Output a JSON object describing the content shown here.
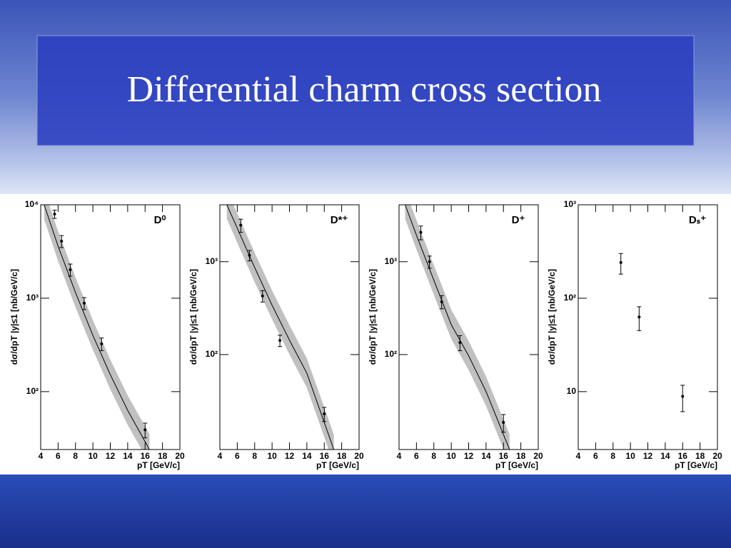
{
  "title": "Differential charm cross section",
  "chart_data": [
    {
      "type": "scatter",
      "label": "D⁰",
      "log": true,
      "x_label": "pT  [GeV/c]",
      "y_label": "dσ/dpT |y|≤1 [nb/GeV/c]",
      "xlim": [
        4,
        20
      ],
      "xticks": [
        4,
        6,
        8,
        10,
        12,
        14,
        16,
        18,
        20
      ],
      "ylim": [
        24,
        10000
      ],
      "yticks": [
        {
          "value": 10000,
          "label": "10⁴"
        },
        {
          "value": 1000,
          "label": "10³"
        },
        {
          "value": 100,
          "label": "10²"
        }
      ],
      "x": [
        5.6,
        6.4,
        7.4,
        9,
        11,
        16
      ],
      "values": [
        7950,
        4080,
        2020,
        885,
        325,
        39
      ],
      "errors": [
        800,
        600,
        300,
        130,
        50,
        7
      ],
      "color": "#000000",
      "band_color": "#c0c0c0",
      "theory": {
        "x": [
          4.4,
          6,
          8,
          10,
          12,
          14,
          16.5
        ],
        "central": [
          10000,
          3600,
          1150,
          400,
          152,
          63,
          24
        ],
        "low": [
          7000,
          2500,
          800,
          280,
          106,
          44,
          17
        ],
        "high": [
          14500,
          5200,
          1670,
          580,
          220,
          91,
          35
        ]
      }
    },
    {
      "type": "scatter",
      "label": "D*⁺",
      "log": true,
      "x_label": "pT  [GeV/c]",
      "y_label": "dσ/dpT |y|≤1 [nb/GeV/c]",
      "xlim": [
        4,
        20
      ],
      "xticks": [
        4,
        6,
        8,
        10,
        12,
        14,
        16,
        18,
        20
      ],
      "ylim": [
        9.5,
        4100
      ],
      "yticks": [
        {
          "value": 1000,
          "label": "10³"
        },
        {
          "value": 100,
          "label": "10²"
        }
      ],
      "x": [
        6.4,
        7.4,
        8.9,
        10.9,
        16
      ],
      "values": [
        2470,
        1170,
        428,
        142,
        23
      ],
      "errors": [
        400,
        150,
        60,
        20,
        4
      ],
      "color": "#000000",
      "band_color": "#c0c0c0",
      "theory": {
        "x": [
          4.8,
          6,
          8,
          10,
          12,
          14,
          17.1
        ],
        "central": [
          4100,
          2300,
          866,
          340,
          143,
          63,
          9.5
        ],
        "low": [
          2900,
          1600,
          600,
          240,
          100,
          44,
          6.6
        ],
        "high": [
          5900,
          3300,
          1250,
          490,
          207,
          91,
          13.8
        ]
      }
    },
    {
      "type": "scatter",
      "label": "D⁺",
      "log": true,
      "x_label": "pT  [GeV/c]",
      "y_label": "dσ/dpT |y|≤1 [nb/GeV/c]",
      "xlim": [
        4,
        20
      ],
      "xticks": [
        4,
        6,
        8,
        10,
        12,
        14,
        16,
        18,
        20
      ],
      "ylim": [
        9.5,
        4100
      ],
      "yticks": [
        {
          "value": 1000,
          "label": "10³"
        },
        {
          "value": 100,
          "label": "10²"
        }
      ],
      "x": [
        6.5,
        7.5,
        8.9,
        11,
        16
      ],
      "values": [
        2070,
        1000,
        371,
        135,
        18.6
      ],
      "errors": [
        350,
        150,
        60,
        25,
        4
      ],
      "color": "#000000",
      "band_color": "#c0c0c0",
      "theory": {
        "x": [
          4.7,
          6,
          8,
          10,
          12,
          14,
          16.7
        ],
        "central": [
          4100,
          1930,
          631,
          210,
          97,
          40,
          9.5
        ],
        "low": [
          2900,
          1350,
          440,
          147,
          68,
          28,
          6.6
        ],
        "high": [
          5900,
          2800,
          915,
          305,
          140,
          58,
          13.8
        ]
      }
    },
    {
      "type": "scatter",
      "label": "Dₛ⁺",
      "log": true,
      "x_label": "pT  [GeV/c]",
      "y_label": "dσ/dpT |y|≤1 [nb/GeV/c]",
      "xlim": [
        4,
        20
      ],
      "xticks": [
        4,
        6,
        8,
        10,
        12,
        14,
        16,
        18,
        20
      ],
      "ylim": [
        2.4,
        1000
      ],
      "yticks": [
        {
          "value": 1000,
          "label": "10³"
        },
        {
          "value": 100,
          "label": "10²"
        },
        10
      ],
      "x": [
        8.9,
        11,
        16
      ],
      "values": [
        241,
        63,
        8.9
      ],
      "errors": [
        60,
        18,
        2.8
      ],
      "color": "#000000"
    }
  ]
}
